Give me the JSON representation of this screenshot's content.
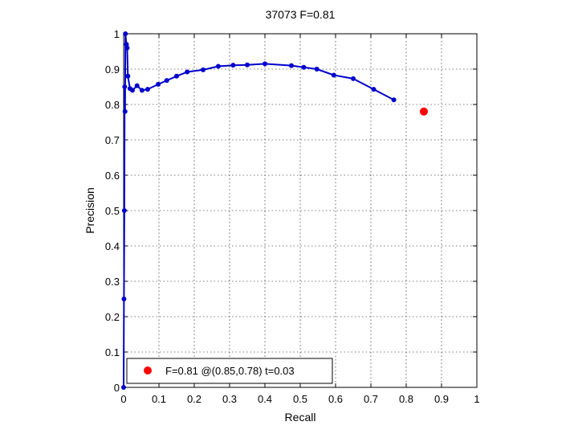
{
  "chart_data": {
    "type": "line",
    "title": "37073 F=0.81",
    "xlabel": "Recall",
    "ylabel": "Precision",
    "xlim": [
      0,
      1
    ],
    "ylim": [
      0,
      1
    ],
    "grid": true,
    "x_ticks": [
      "0",
      "0.1",
      "0.2",
      "0.3",
      "0.4",
      "0.5",
      "0.6",
      "0.7",
      "0.8",
      "0.9",
      "1"
    ],
    "y_ticks": [
      "0",
      "0.1",
      "0.2",
      "0.3",
      "0.4",
      "0.5",
      "0.6",
      "0.7",
      "0.8",
      "0.9",
      "1"
    ],
    "series": [
      {
        "color": "#0000cc",
        "points": [
          [
            0.0,
            0.0
          ],
          [
            0.001,
            0.25
          ],
          [
            0.002,
            0.5
          ],
          [
            0.003,
            0.85
          ],
          [
            0.004,
            0.78
          ],
          [
            0.005,
            1.0
          ],
          [
            0.008,
            0.97
          ],
          [
            0.01,
            0.96
          ],
          [
            0.012,
            0.88
          ],
          [
            0.018,
            0.845
          ],
          [
            0.025,
            0.84
          ],
          [
            0.038,
            0.853
          ],
          [
            0.052,
            0.84
          ],
          [
            0.068,
            0.843
          ],
          [
            0.098,
            0.857
          ],
          [
            0.122,
            0.868
          ],
          [
            0.15,
            0.88
          ],
          [
            0.18,
            0.892
          ],
          [
            0.225,
            0.898
          ],
          [
            0.268,
            0.908
          ],
          [
            0.31,
            0.911
          ],
          [
            0.35,
            0.912
          ],
          [
            0.4,
            0.915
          ],
          [
            0.475,
            0.91
          ],
          [
            0.51,
            0.905
          ],
          [
            0.547,
            0.9
          ],
          [
            0.595,
            0.883
          ],
          [
            0.65,
            0.873
          ],
          [
            0.708,
            0.843
          ],
          [
            0.765,
            0.813
          ]
        ]
      }
    ],
    "highlight": {
      "x": 0.85,
      "y": 0.78,
      "color": "#ff0000"
    },
    "legend": {
      "position": "bottom-left",
      "label": "F=0.81 @(0.85,0.78) t=0.03"
    }
  }
}
